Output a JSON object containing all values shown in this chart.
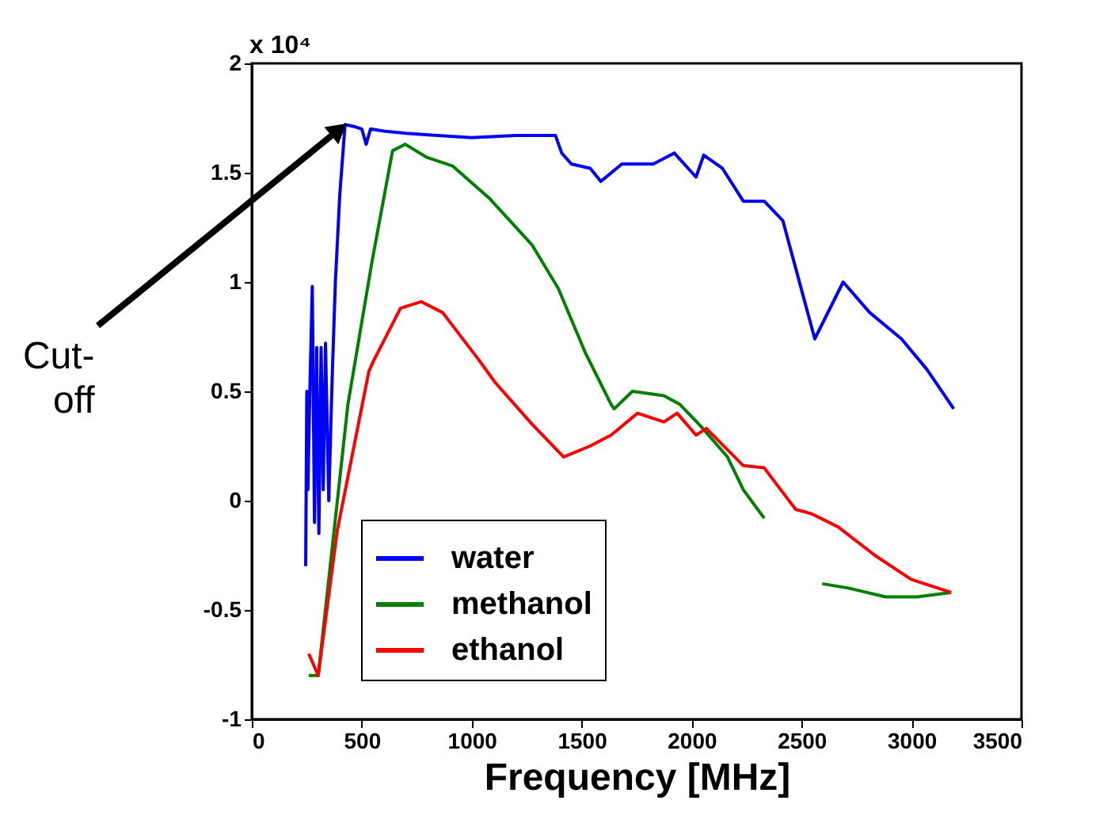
{
  "chart_data": {
    "type": "line",
    "xlabel": "Frequency [MHz]",
    "ylabel": "x 10⁴",
    "xlim": [
      0,
      3500
    ],
    "xticks": [
      0,
      500,
      1000,
      1500,
      2000,
      2500,
      3000,
      3500
    ],
    "ylim": [
      -1,
      2
    ],
    "yticks": [
      -1,
      -0.5,
      0,
      0.5,
      1,
      1.5,
      2
    ],
    "grid": false,
    "legend": "bottom",
    "line_style": "solid",
    "marker": "none",
    "annotations": [
      {
        "text": "Cut-off",
        "x": 424,
        "y": 1.72
      }
    ],
    "series": [
      {
        "name": "water",
        "color": "#0000ff",
        "x": [
          245,
          250,
          255,
          265,
          275,
          285,
          295,
          305,
          315,
          325,
          335,
          350,
          365,
          380,
          400,
          424,
          470,
          500,
          520,
          540,
          600,
          700,
          843,
          1000,
          1201,
          1381,
          1409,
          1453,
          1539,
          1587,
          1683,
          1826,
          1921,
          2020,
          2055,
          2140,
          2235,
          2330,
          2415,
          2560,
          2689,
          2810,
          2954,
          3070,
          3192
        ],
        "values": [
          -0.3,
          0.5,
          0.05,
          0.55,
          0.98,
          -0.1,
          0.7,
          -0.15,
          0.7,
          0.05,
          0.72,
          0.0,
          0.55,
          1.0,
          1.4,
          1.72,
          1.71,
          1.7,
          1.63,
          1.7,
          1.69,
          1.68,
          1.67,
          1.66,
          1.67,
          1.67,
          1.59,
          1.54,
          1.52,
          1.46,
          1.54,
          1.54,
          1.59,
          1.48,
          1.58,
          1.52,
          1.37,
          1.37,
          1.28,
          0.74,
          1.0,
          0.86,
          0.74,
          0.6,
          0.42
        ]
      },
      {
        "name": "methanol",
        "color": "#008000",
        "x": [
          259,
          302,
          437,
          546,
          640,
          698,
          796,
          914,
          1083,
          1274,
          1394,
          1515,
          1634,
          1648,
          1731,
          1874,
          1947,
          2042,
          2163,
          2235,
          2330,
          2450,
          2594,
          2713,
          2882,
          3025,
          3180
        ],
        "values": [
          -0.8,
          -0.8,
          0.44,
          1.09,
          1.6,
          1.63,
          1.57,
          1.53,
          1.38,
          1.17,
          0.97,
          0.68,
          0.44,
          0.42,
          0.5,
          0.48,
          0.44,
          0.34,
          0.2,
          0.05,
          -0.08,
          null,
          -0.38,
          -0.4,
          -0.44,
          -0.44,
          -0.42
        ]
      },
      {
        "name": "ethanol",
        "color": "#ff0000",
        "x": [
          259,
          302,
          388,
          532,
          554,
          676,
          770,
          868,
          1035,
          1107,
          1274,
          1418,
          1539,
          1634,
          1754,
          1874,
          1934,
          2020,
          2067,
          2235,
          2330,
          2473,
          2545,
          2666,
          2833,
          2998,
          3180
        ],
        "values": [
          -0.7,
          -0.8,
          -0.14,
          0.59,
          0.64,
          0.88,
          0.91,
          0.86,
          0.64,
          0.54,
          0.35,
          0.2,
          0.25,
          0.3,
          0.4,
          0.36,
          0.4,
          0.3,
          0.33,
          0.16,
          0.15,
          -0.04,
          -0.06,
          -0.12,
          -0.25,
          -0.36,
          -0.42
        ]
      }
    ]
  }
}
